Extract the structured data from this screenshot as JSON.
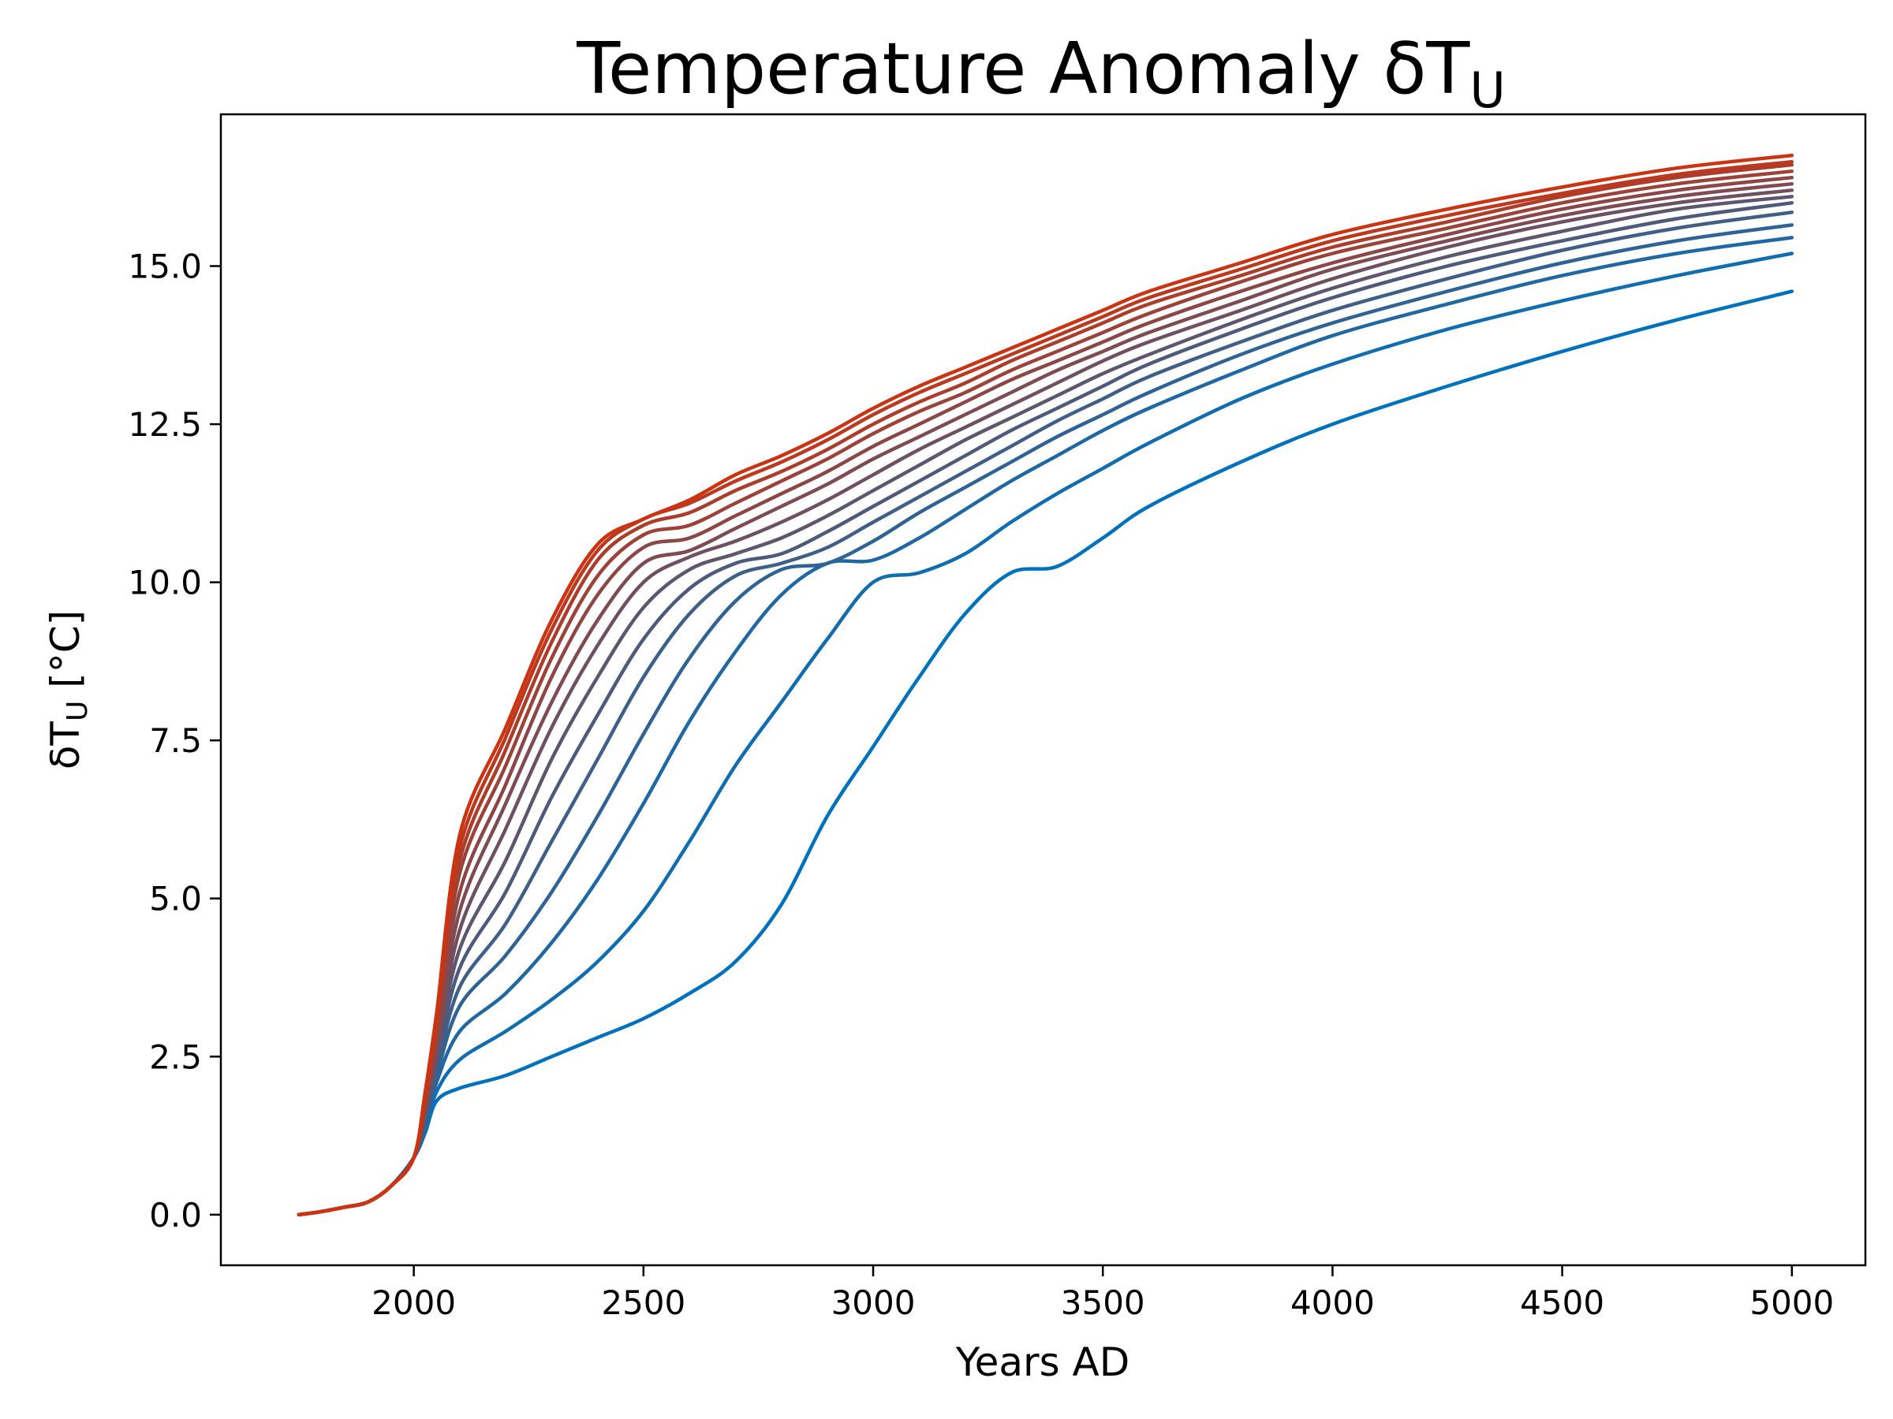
{
  "chart_data": {
    "type": "line",
    "title_prefix": "Temperature Anomaly δT",
    "title_sub": "U",
    "xlabel": "Years AD",
    "ylabel_prefix": "δT",
    "ylabel_sub": "U",
    "ylabel_suffix": " [°C]",
    "xlim": [
      1580,
      5160
    ],
    "ylim": [
      -0.8,
      17.4
    ],
    "xticks": [
      2000,
      2500,
      3000,
      3500,
      4000,
      4500,
      5000
    ],
    "xtick_labels": [
      "2000",
      "2500",
      "3000",
      "3500",
      "4000",
      "4500",
      "5000"
    ],
    "yticks": [
      0,
      2.5,
      5,
      7.5,
      10,
      12.5,
      15
    ],
    "ytick_labels": [
      "0.0",
      "2.5",
      "5.0",
      "7.5",
      "10.0",
      "12.5",
      "15.0"
    ],
    "grid": false,
    "legend": "none",
    "color_low": "#0072bd",
    "color_high": "#cc3311",
    "x": [
      1750,
      1800,
      1850,
      1900,
      1950,
      2000,
      2025,
      2050,
      2100,
      2200,
      2300,
      2400,
      2500,
      2600,
      2700,
      2800,
      2900,
      3000,
      3100,
      3200,
      3300,
      3400,
      3500,
      3600,
      3800,
      4000,
      4250,
      4500,
      4750,
      5000
    ],
    "series": [
      {
        "values": [
          0,
          0.05,
          0.12,
          0.2,
          0.45,
          0.9,
          1.3,
          1.8,
          2.0,
          2.2,
          2.5,
          2.8,
          3.1,
          3.5,
          4.0,
          4.9,
          6.3,
          7.4,
          8.5,
          9.5,
          10.15,
          10.25,
          10.7,
          11.2,
          11.9,
          12.5,
          13.1,
          13.65,
          14.15,
          14.6
        ]
      },
      {
        "values": [
          0,
          0.05,
          0.12,
          0.2,
          0.45,
          0.9,
          1.35,
          1.95,
          2.45,
          2.9,
          3.4,
          4.0,
          4.8,
          5.9,
          7.1,
          8.1,
          9.1,
          10.0,
          10.15,
          10.45,
          10.95,
          11.4,
          11.8,
          12.2,
          12.9,
          13.45,
          14.0,
          14.45,
          14.85,
          15.2
        ]
      },
      {
        "values": [
          0,
          0.05,
          0.12,
          0.2,
          0.45,
          0.9,
          1.4,
          2.1,
          2.9,
          3.5,
          4.3,
          5.3,
          6.5,
          7.8,
          8.9,
          9.8,
          10.3,
          10.35,
          10.7,
          11.15,
          11.6,
          12.0,
          12.4,
          12.75,
          13.35,
          13.9,
          14.4,
          14.85,
          15.2,
          15.45
        ]
      },
      {
        "values": [
          0,
          0.05,
          0.12,
          0.2,
          0.45,
          0.9,
          1.45,
          2.2,
          3.3,
          4.1,
          5.1,
          6.3,
          7.6,
          8.8,
          9.7,
          10.2,
          10.3,
          10.65,
          11.1,
          11.5,
          11.9,
          12.3,
          12.65,
          13.0,
          13.6,
          14.1,
          14.6,
          15.05,
          15.4,
          15.65
        ]
      },
      {
        "values": [
          0,
          0.05,
          0.12,
          0.2,
          0.45,
          0.9,
          1.5,
          2.3,
          3.6,
          4.6,
          5.9,
          7.2,
          8.5,
          9.5,
          10.1,
          10.3,
          10.55,
          10.95,
          11.35,
          11.75,
          12.15,
          12.55,
          12.9,
          13.25,
          13.8,
          14.3,
          14.8,
          15.25,
          15.6,
          15.85
        ]
      },
      {
        "values": [
          0,
          0.05,
          0.12,
          0.2,
          0.45,
          0.9,
          1.55,
          2.4,
          3.9,
          5.1,
          6.6,
          7.9,
          9.1,
          9.9,
          10.3,
          10.45,
          10.8,
          11.2,
          11.6,
          12.0,
          12.4,
          12.75,
          13.1,
          13.45,
          14.0,
          14.5,
          15.0,
          15.4,
          15.75,
          16.0
        ]
      },
      {
        "values": [
          0,
          0.05,
          0.12,
          0.2,
          0.45,
          0.9,
          1.6,
          2.5,
          4.2,
          5.6,
          7.2,
          8.5,
          9.6,
          10.2,
          10.45,
          10.7,
          11.05,
          11.45,
          11.85,
          12.25,
          12.6,
          12.95,
          13.3,
          13.6,
          14.15,
          14.65,
          15.15,
          15.55,
          15.9,
          16.1
        ]
      },
      {
        "values": [
          0,
          0.05,
          0.12,
          0.2,
          0.45,
          0.9,
          1.65,
          2.6,
          4.5,
          6.1,
          7.7,
          9.0,
          10.0,
          10.4,
          10.65,
          10.95,
          11.3,
          11.7,
          12.1,
          12.45,
          12.8,
          13.15,
          13.5,
          13.8,
          14.3,
          14.8,
          15.3,
          15.7,
          16.0,
          16.2
        ]
      },
      {
        "values": [
          0,
          0.05,
          0.12,
          0.2,
          0.45,
          0.9,
          1.7,
          2.7,
          4.8,
          6.5,
          8.1,
          9.4,
          10.3,
          10.5,
          10.85,
          11.2,
          11.55,
          11.95,
          12.3,
          12.65,
          13.0,
          13.35,
          13.65,
          13.95,
          14.45,
          14.95,
          15.4,
          15.8,
          16.1,
          16.3
        ]
      },
      {
        "values": [
          0,
          0.05,
          0.12,
          0.2,
          0.45,
          0.9,
          1.75,
          2.8,
          5.1,
          6.8,
          8.5,
          9.8,
          10.55,
          10.7,
          11.05,
          11.4,
          11.75,
          12.15,
          12.5,
          12.85,
          13.2,
          13.5,
          13.8,
          14.1,
          14.6,
          15.05,
          15.5,
          15.9,
          16.2,
          16.4
        ]
      },
      {
        "values": [
          0,
          0.05,
          0.12,
          0.2,
          0.45,
          0.9,
          1.8,
          2.9,
          5.4,
          7.1,
          8.8,
          10.1,
          10.75,
          10.9,
          11.25,
          11.6,
          11.95,
          12.35,
          12.7,
          13.0,
          13.35,
          13.65,
          13.95,
          14.25,
          14.75,
          15.2,
          15.6,
          16.0,
          16.3,
          16.5
        ]
      },
      {
        "values": [
          0,
          0.05,
          0.12,
          0.2,
          0.45,
          0.9,
          1.85,
          3.0,
          5.6,
          7.35,
          9.05,
          10.35,
          10.9,
          11.1,
          11.45,
          11.75,
          12.1,
          12.5,
          12.85,
          13.15,
          13.5,
          13.8,
          14.1,
          14.4,
          14.85,
          15.3,
          15.7,
          16.1,
          16.4,
          16.6
        ]
      },
      {
        "values": [
          0,
          0.05,
          0.12,
          0.2,
          0.45,
          0.9,
          1.9,
          3.1,
          5.8,
          7.55,
          9.25,
          10.5,
          11.0,
          11.25,
          11.6,
          11.9,
          12.25,
          12.65,
          13.0,
          13.3,
          13.6,
          13.9,
          14.2,
          14.5,
          14.95,
          15.4,
          15.8,
          16.15,
          16.45,
          16.65
        ]
      },
      {
        "values": [
          0,
          0.05,
          0.12,
          0.2,
          0.45,
          0.9,
          1.95,
          3.2,
          6.0,
          7.7,
          9.4,
          10.6,
          11.0,
          11.3,
          11.7,
          12.0,
          12.35,
          12.75,
          13.1,
          13.4,
          13.7,
          14.0,
          14.3,
          14.6,
          15.05,
          15.5,
          15.9,
          16.25,
          16.55,
          16.75
        ]
      }
    ]
  }
}
